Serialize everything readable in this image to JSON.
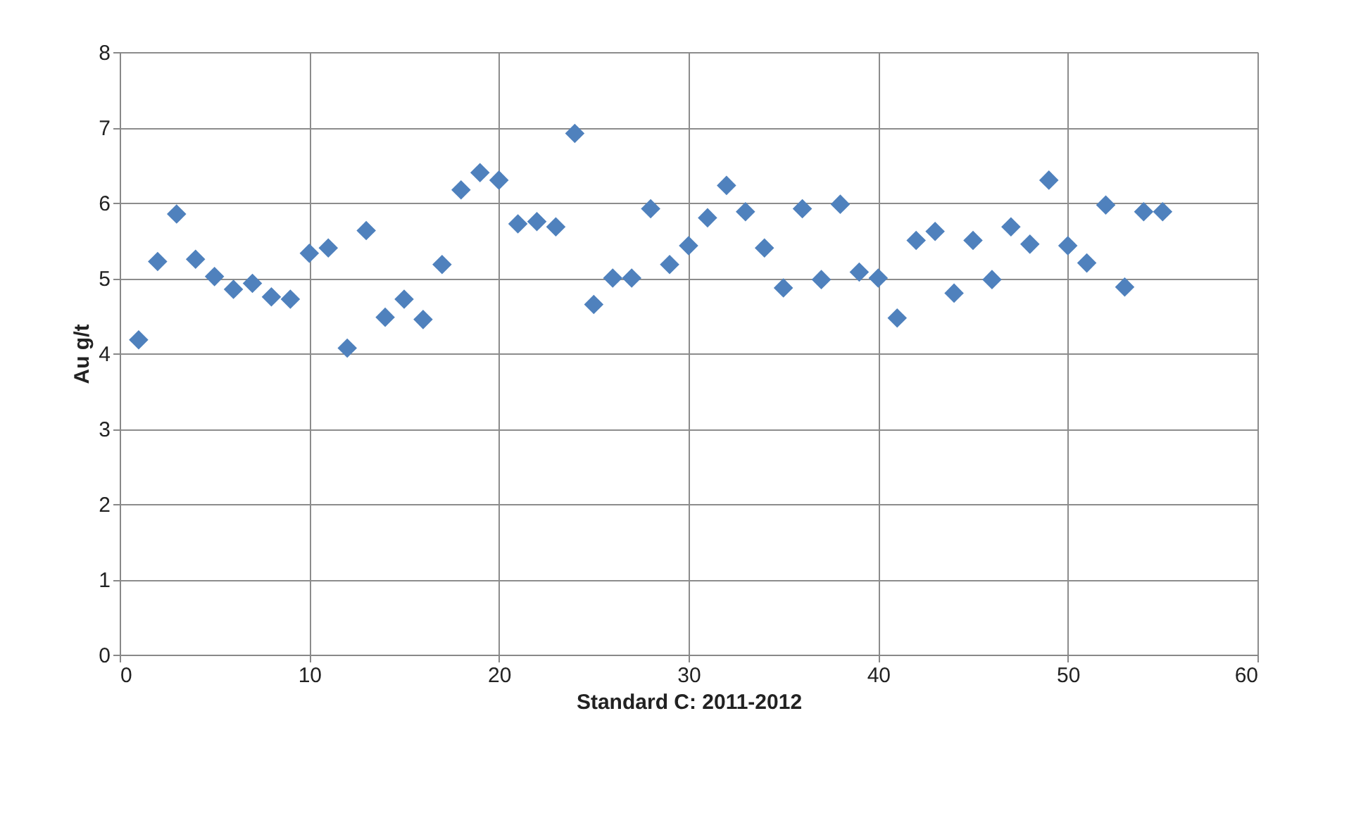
{
  "chart_data": {
    "type": "scatter",
    "xlabel": "Standard C: 2011-2012",
    "ylabel": "Au g/t",
    "x": [
      1,
      2,
      3,
      4,
      5,
      6,
      7,
      8,
      9,
      10,
      11,
      12,
      13,
      14,
      15,
      16,
      17,
      18,
      19,
      20,
      21,
      22,
      23,
      24,
      25,
      26,
      27,
      28,
      29,
      30,
      31,
      32,
      33,
      34,
      35,
      36,
      37,
      38,
      39,
      40,
      41,
      42,
      43,
      44,
      45,
      46,
      47,
      48,
      49,
      50,
      51,
      52,
      53,
      54,
      55
    ],
    "series": [
      {
        "color": "#4f81bd",
        "values": [
          4.18,
          5.22,
          5.85,
          5.25,
          5.02,
          4.85,
          4.93,
          4.75,
          4.72,
          5.33,
          5.4,
          4.07,
          5.63,
          4.48,
          4.72,
          4.45,
          5.18,
          6.17,
          6.4,
          6.3,
          5.72,
          5.75,
          5.68,
          6.92,
          4.65,
          5.0,
          5.0,
          5.92,
          5.18,
          5.43,
          5.8,
          6.23,
          5.88,
          5.4,
          4.87,
          5.92,
          4.98,
          5.98,
          5.08,
          5.0,
          4.47,
          5.5,
          5.62,
          4.8,
          5.5,
          4.98,
          5.68,
          5.45,
          6.3,
          5.43,
          5.2,
          5.97,
          4.88,
          5.88,
          5.88
        ]
      }
    ],
    "xlim": [
      0,
      60
    ],
    "xticks": [
      0,
      10,
      20,
      30,
      40,
      50,
      60
    ],
    "ylim": [
      0,
      8
    ],
    "yticks": [
      0,
      1,
      2,
      3,
      4,
      5,
      6,
      7,
      8
    ],
    "grid": true,
    "marker": "diamond"
  }
}
